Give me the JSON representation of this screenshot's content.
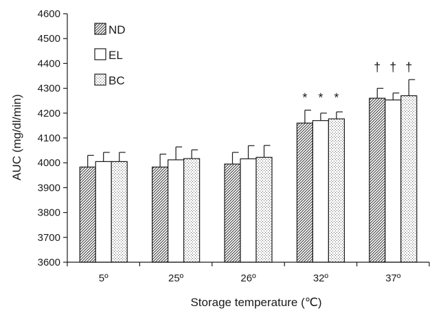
{
  "chart_data": {
    "type": "bar",
    "title": "",
    "xlabel": "Storage temperature (℃)",
    "ylabel": "AUC (mg/dl/min)",
    "ylim": [
      3600,
      4600
    ],
    "yticks": [
      3600,
      3700,
      3800,
      3900,
      4000,
      4100,
      4200,
      4300,
      4400,
      4500,
      4600
    ],
    "categories": [
      "5º",
      "25º",
      "26º",
      "32º",
      "37º"
    ],
    "series": [
      {
        "name": "ND",
        "pattern": "diagonal-hatch",
        "values": [
          3983,
          3983,
          3995,
          4160,
          4260
        ],
        "errors": [
          47,
          52,
          47,
          52,
          40
        ]
      },
      {
        "name": "EL",
        "pattern": "solid-white",
        "values": [
          4005,
          4012,
          4016,
          4170,
          4253
        ],
        "errors": [
          37,
          52,
          53,
          30,
          28
        ]
      },
      {
        "name": "BC",
        "pattern": "dotted",
        "values": [
          4005,
          4017,
          4022,
          4177,
          4270
        ],
        "errors": [
          37,
          35,
          48,
          28,
          65
        ]
      }
    ],
    "annotations": [
      {
        "category": "32º",
        "symbol": "*"
      },
      {
        "category": "37º",
        "symbol": "†"
      }
    ],
    "grid": false,
    "legend_position": "top-left",
    "colors": {
      "outline": "#1a1a1a",
      "fill": "#ffffff"
    }
  }
}
